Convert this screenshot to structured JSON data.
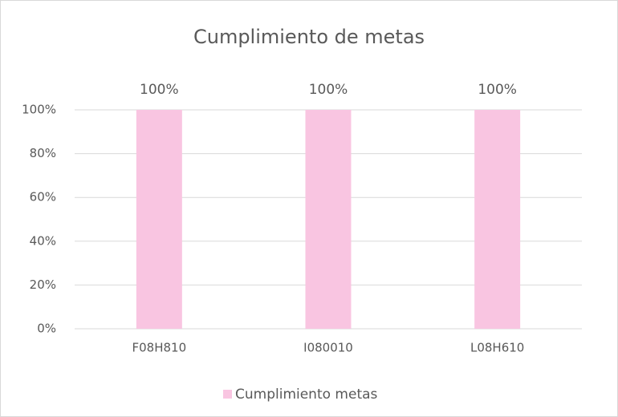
{
  "chart_data": {
    "type": "bar",
    "title": "Cumplimiento de metas",
    "categories": [
      "F08H810",
      "I080010",
      "L08H610"
    ],
    "series": [
      {
        "name": "Cumplimiento metas",
        "color": "#f9c5e1",
        "values": [
          100,
          100,
          100
        ],
        "value_labels": [
          "100%",
          "100%",
          "100%"
        ]
      }
    ],
    "ylim": [
      0,
      100
    ],
    "yticks": [
      {
        "value": 0,
        "label": "0%"
      },
      {
        "value": 20,
        "label": "20%"
      },
      {
        "value": 40,
        "label": "40%"
      },
      {
        "value": 60,
        "label": "60%"
      },
      {
        "value": 80,
        "label": "80%"
      },
      {
        "value": 100,
        "label": "100%"
      }
    ],
    "grid": true,
    "legend": "bottom"
  }
}
